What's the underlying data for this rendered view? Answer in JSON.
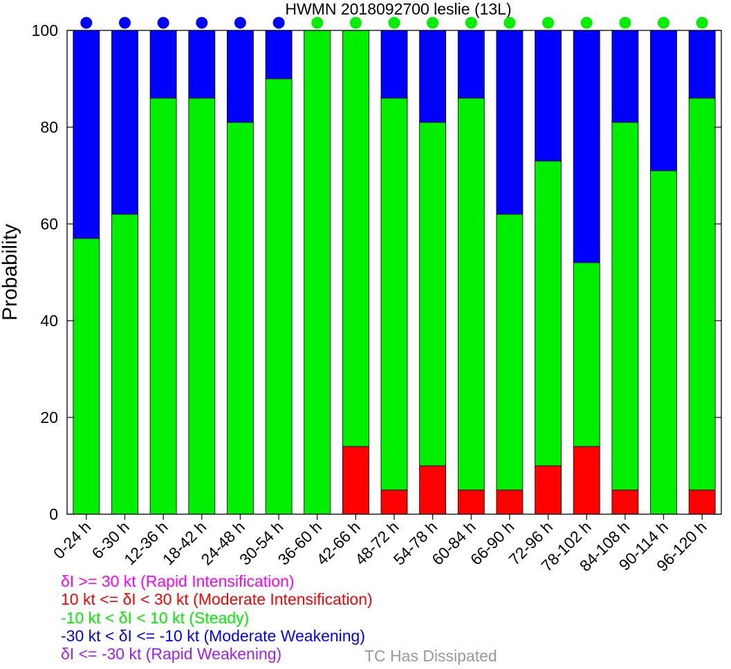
{
  "chart_data": {
    "type": "bar",
    "stacked": true,
    "title": "HWMN 2018092700 leslie (13L)",
    "xlabel": "",
    "ylabel": "Probability",
    "ylim": [
      0,
      100
    ],
    "yticks": [
      0,
      20,
      40,
      60,
      80,
      100
    ],
    "grid": false,
    "categories": [
      "0-24 h",
      "6-30 h",
      "12-36 h",
      "18-42 h",
      "24-48 h",
      "30-54 h",
      "36-60 h",
      "42-66 h",
      "48-72 h",
      "54-78 h",
      "60-84 h",
      "66-90 h",
      "72-96 h",
      "78-102 h",
      "84-108 h",
      "90-114 h",
      "96-120 h"
    ],
    "series": [
      {
        "name": "Moderate Intensification",
        "color": "#ff0000",
        "values": [
          0,
          0,
          0,
          0,
          0,
          0,
          0,
          14,
          5,
          10,
          5,
          5,
          10,
          14,
          5,
          0,
          5
        ]
      },
      {
        "name": "Steady",
        "color": "#00ee00",
        "values": [
          57,
          62,
          86,
          86,
          81,
          90,
          100,
          86,
          81,
          71,
          81,
          57,
          63,
          38,
          76,
          71,
          81
        ]
      },
      {
        "name": "Moderate Weakening",
        "color": "#0000ff",
        "values": [
          43,
          38,
          14,
          14,
          19,
          10,
          0,
          0,
          14,
          19,
          14,
          38,
          27,
          48,
          19,
          29,
          14
        ]
      }
    ],
    "dominant_category_markers": [
      "Moderate Weakening",
      "Moderate Weakening",
      "Moderate Weakening",
      "Moderate Weakening",
      "Moderate Weakening",
      "Moderate Weakening",
      "Steady",
      "Steady",
      "Steady",
      "Steady",
      "Steady",
      "Steady",
      "Steady",
      "Steady",
      "Steady",
      "Steady",
      "Steady"
    ]
  },
  "legend": [
    {
      "text": "δI >= 30 kt (Rapid Intensification)",
      "color": "#ff00ff"
    },
    {
      "text": "10 kt <= δI < 30 kt (Moderate Intensification)",
      "color": "#ff0000"
    },
    {
      "text": "-10 kt < δI < 10 kt (Steady)",
      "color": "#00ee00"
    },
    {
      "text": "-30 kt < δI <= -10 kt (Moderate Weakening)",
      "color": "#0000ff"
    },
    {
      "text": "δI <= -30 kt (Rapid Weakening)",
      "color": "#a020f0"
    }
  ],
  "dissipated_note": {
    "text": "TC Has Dissipated",
    "color": "#999999"
  }
}
